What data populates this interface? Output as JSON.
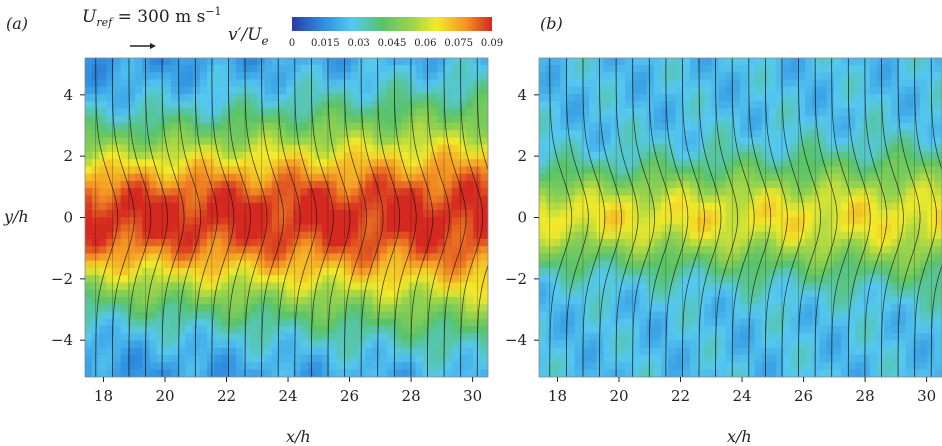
{
  "chart_data": [
    {
      "type": "heatmap",
      "panel_label": "(a)",
      "xlabel": "x/h",
      "ylabel": "y/h",
      "xlim": [
        17.4,
        30.5
      ],
      "ylim": [
        -5.2,
        5.2
      ],
      "xticks": [
        "18",
        "20",
        "22",
        "24",
        "26",
        "28",
        "30"
      ],
      "yticks": [
        "4",
        "2",
        "0",
        "−2",
        "−4"
      ],
      "reference_vector": "U_ref = 300 m s⁻¹",
      "vector_columns": 24,
      "field": {
        "variable": "v'/U_e",
        "peak_band_y": [
          -1.5,
          1.5
        ],
        "centerline_max": 0.09,
        "edge_min": 0.015,
        "spreads_downstream": true
      }
    },
    {
      "type": "heatmap",
      "panel_label": "(b)",
      "xlabel": "x/h",
      "xlim": [
        17.4,
        30.5
      ],
      "ylim": [
        -5.2,
        5.2
      ],
      "xticks": [
        "18",
        "20",
        "22",
        "24",
        "26",
        "28",
        "30"
      ],
      "yticks": [
        "4",
        "2",
        "0",
        "−2",
        "−4"
      ],
      "vector_columns": 24,
      "field": {
        "variable": "v'/U_e",
        "peak_band_y": [
          -0.8,
          0.8
        ],
        "centerline_max": 0.065,
        "edge_min": 0.025,
        "spreads_downstream": true
      }
    }
  ],
  "colorbar": {
    "label_main": "v′/U",
    "label_sub": "e",
    "range": [
      0,
      0.09
    ],
    "ticks": [
      "0",
      "0.015",
      "0.03",
      "0.045",
      "0.06",
      "0.075",
      "0.09"
    ],
    "colors": [
      "#2a3ca8",
      "#2f8fe0",
      "#55c8f0",
      "#59c36a",
      "#9bd44a",
      "#f2ea2a",
      "#f59a24",
      "#d42820"
    ]
  },
  "annotation": {
    "u_symbol": "U",
    "u_sub": "ref",
    "u_value": " = 300 m s",
    "u_exp": "−1"
  }
}
